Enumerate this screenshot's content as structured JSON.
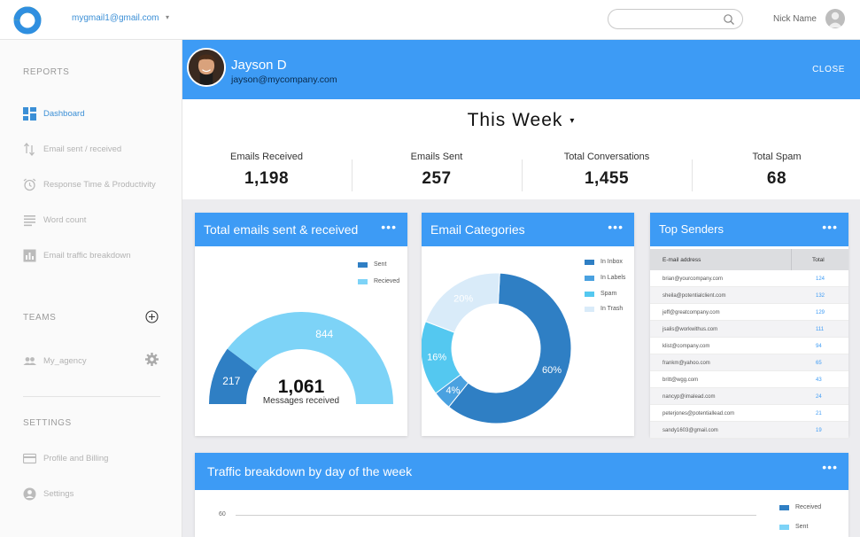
{
  "topbar": {
    "account_email": "mygmail1@gmail.com",
    "account_caret": "▾",
    "search_placeholder": "",
    "user_name": "Nick Name"
  },
  "sidebar": {
    "reports_title": "REPORTS",
    "reports": [
      {
        "label": "Dashboard",
        "icon": "dashboard-icon",
        "active": true
      },
      {
        "label": "Email sent / received",
        "icon": "sort-arrows-icon"
      },
      {
        "label": "Response Time & Productivity",
        "icon": "alarm-clock-icon"
      },
      {
        "label": "Word count",
        "icon": "lines-icon"
      },
      {
        "label": "Email traffic breakdown",
        "icon": "bar-chart-icon"
      }
    ],
    "teams_title": "TEAMS",
    "teams": [
      {
        "label": "My_agency",
        "icon": "group-icon"
      }
    ],
    "settings_title": "SETTINGS",
    "settings": [
      {
        "label": "Profile and Billing",
        "icon": "credit-card-icon"
      },
      {
        "label": "Settings",
        "icon": "account-circle-icon"
      }
    ]
  },
  "profile": {
    "name": "Jayson D",
    "email": "jayson@mycompany.com",
    "close_label": "CLOSE"
  },
  "summary": {
    "period": "This Week",
    "period_caret": "▾",
    "stats": [
      {
        "label": "Emails Received",
        "value": "1,198"
      },
      {
        "label": "Emails Sent",
        "value": "257"
      },
      {
        "label": "Total Conversations",
        "value": "1,455"
      },
      {
        "label": "Total Spam",
        "value": "68"
      }
    ]
  },
  "colors": {
    "primary": "#3d9bf5",
    "dark_blue": "#2f7fc4",
    "light_blue": "#7dd3f7",
    "mid_blue": "#4aa1e0",
    "cyan": "#54c8f0",
    "pale_blue": "#d9ebf9"
  },
  "cards": {
    "sent_received": {
      "title": "Total emails sent & received",
      "menu": "•••"
    },
    "categories": {
      "title": "Email Categories",
      "menu": "•••"
    },
    "top_senders": {
      "title": "Top Senders",
      "menu": "•••"
    },
    "traffic": {
      "title": "Traffic breakdown by day of the week",
      "menu": "•••"
    }
  },
  "chart_data": [
    {
      "type": "pie",
      "variant": "half-donut",
      "title": "Total emails sent & received",
      "labels": [
        "Sent",
        "Recieved"
      ],
      "values": [
        217,
        844
      ],
      "colors": [
        "#2f7fc4",
        "#7dd3f7"
      ],
      "center_value": "1,061",
      "center_label": "Messages received",
      "legend_position": "top-right"
    },
    {
      "type": "pie",
      "variant": "donut",
      "title": "Email Categories",
      "labels": [
        "In Inbox",
        "In Labels",
        "Spam",
        "In Trash"
      ],
      "values": [
        60,
        4,
        16,
        20
      ],
      "value_labels": [
        "60%",
        "4%",
        "16%",
        "20%"
      ],
      "colors": [
        "#2f7fc4",
        "#4aa1e0",
        "#54c8f0",
        "#d9ebf9"
      ],
      "legend_position": "top-right"
    },
    {
      "type": "table",
      "title": "Top Senders",
      "columns": [
        "E-mail address",
        "Total"
      ],
      "rows": [
        [
          "brian@yourcompany.com",
          "124"
        ],
        [
          "sheila@potentialclient.com",
          "132"
        ],
        [
          "jeff@greatcompany.com",
          "129"
        ],
        [
          "jsalis@workwithus.com",
          "111"
        ],
        [
          "klist@company.com",
          "94"
        ],
        [
          "frankm@yahoo.com",
          "65"
        ],
        [
          "britt@wgg.com",
          "43"
        ],
        [
          "nancyp@imalead.com",
          "24"
        ],
        [
          "peterjones@potentiallead.com",
          "21"
        ],
        [
          "sandy1603@gmail.com",
          "19"
        ]
      ]
    },
    {
      "type": "line",
      "title": "Traffic breakdown by day of the week",
      "y_ticks": [
        "60"
      ],
      "series": [
        {
          "name": "Received",
          "color": "#2f7fc4"
        },
        {
          "name": "Sent",
          "color": "#7dd3f7"
        }
      ],
      "legend_position": "top-right"
    }
  ]
}
